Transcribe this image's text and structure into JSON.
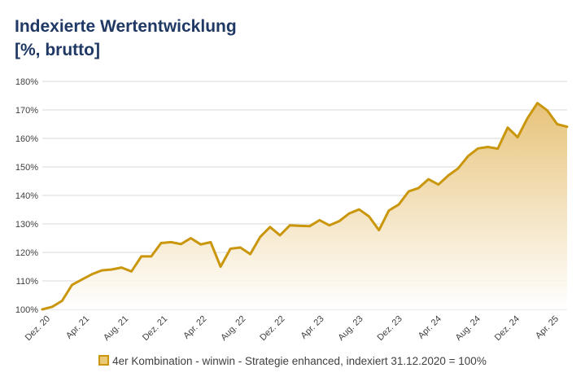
{
  "title_lines": [
    "Indexierte Wertentwicklung",
    "[%, brutto]"
  ],
  "legend_label": "4er Kombination - winwin - Strategie enhanced, indexiert 31.12.2020 = 100%",
  "colors": {
    "line": "#c9960c",
    "fill_top": "#e6c073",
    "grid": "#d9d9d9",
    "title": "#1f3864"
  },
  "chart_data": {
    "type": "area",
    "title": "Indexierte Wertentwicklung [%, brutto]",
    "ylim": [
      100,
      180
    ],
    "y_ticks": [
      100,
      110,
      120,
      130,
      140,
      150,
      160,
      170,
      180
    ],
    "y_tick_labels": [
      "100%",
      "110%",
      "120%",
      "130%",
      "140%",
      "150%",
      "160%",
      "170%",
      "180%"
    ],
    "x_tick_labels": [
      "Dez. 20",
      "Apr. 21",
      "Aug. 21",
      "Dez. 21",
      "Apr. 22",
      "Aug. 22",
      "Dez. 22",
      "Apr. 23",
      "Aug. 23",
      "Dez. 23",
      "Apr. 24",
      "Aug. 24",
      "Dez. 24",
      "Apr. 25"
    ],
    "grid": true,
    "legend_position": "bottom",
    "series": [
      {
        "name": "4er Kombination - winwin - Strategie enhanced, indexiert 31.12.2020 = 100%",
        "values": [
          100.0,
          100.9,
          103.0,
          108.6,
          110.5,
          112.3,
          113.7,
          114.0,
          114.7,
          113.3,
          118.6,
          118.6,
          123.3,
          123.6,
          122.9,
          125.0,
          122.8,
          123.6,
          115.0,
          121.3,
          121.7,
          119.4,
          125.4,
          128.9,
          126.0,
          129.5,
          129.3,
          129.2,
          131.3,
          129.5,
          131.0,
          133.7,
          135.1,
          132.6,
          127.8,
          134.7,
          136.8,
          141.4,
          142.6,
          145.7,
          143.8,
          147.0,
          149.5,
          153.8,
          156.5,
          157.0,
          156.4,
          163.8,
          160.4,
          167.1,
          172.4,
          169.8,
          165.0,
          164.1
        ]
      }
    ]
  }
}
